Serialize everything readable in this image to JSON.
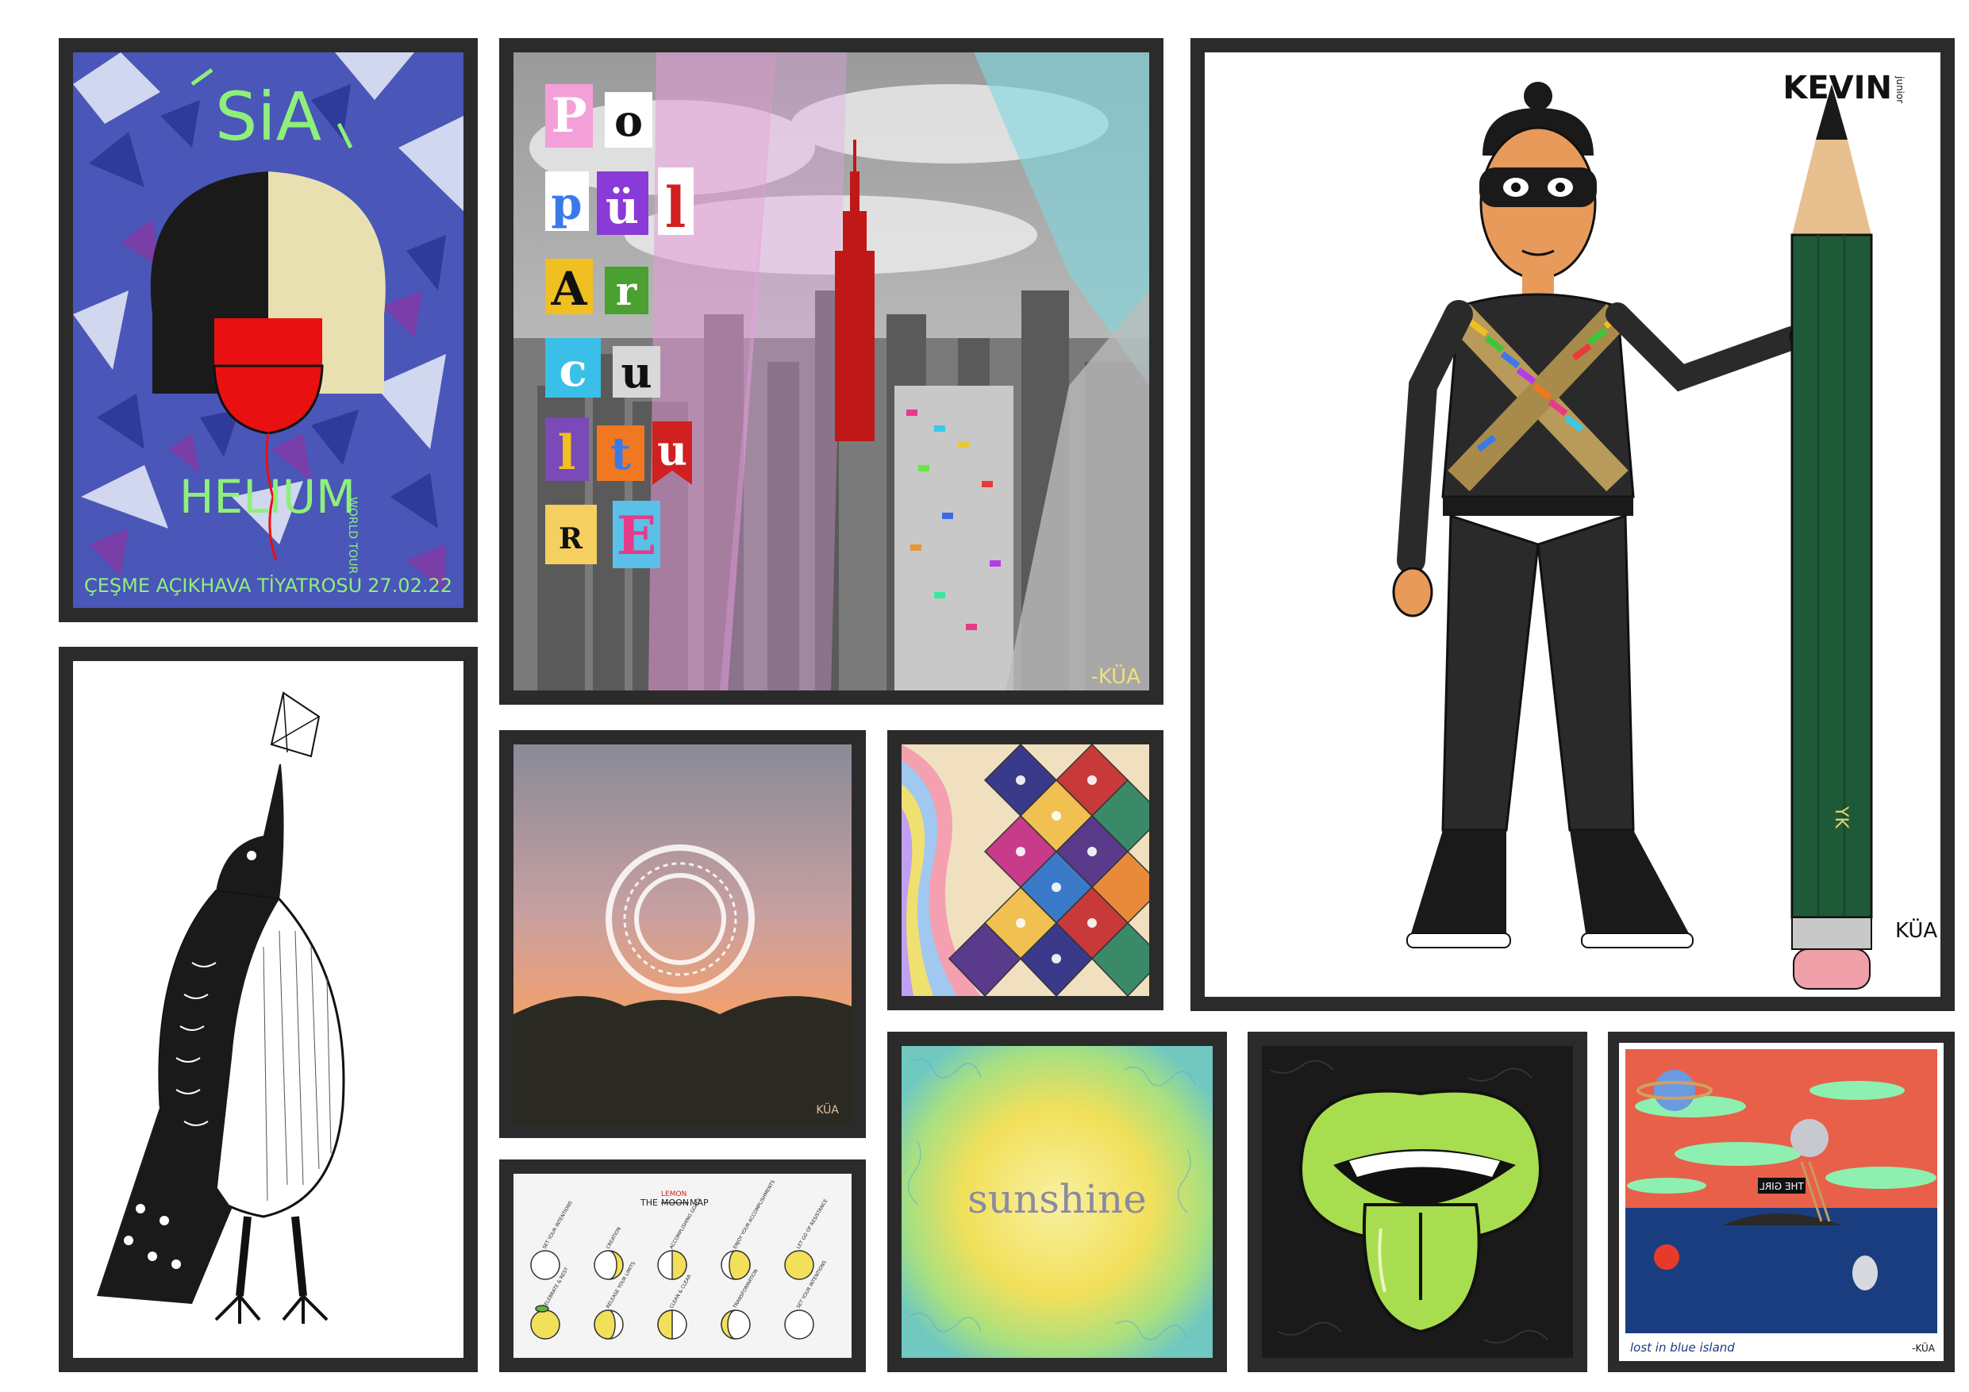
{
  "artworks": {
    "sia": {
      "title": "SiA",
      "headline": "HELIUM",
      "tour": "WORLD TOUR",
      "venue": "ÇEŞME AÇIKHAVA TİYATROSU",
      "date": "27.02.22"
    },
    "pop": {
      "letters": [
        "P",
        "o",
        "p",
        "ü",
        "l",
        "A",
        "r",
        "c",
        "u",
        "l",
        "t",
        "u",
        "R",
        "E"
      ],
      "signature": "-KÜA"
    },
    "kevin": {
      "brand": "KEVIN",
      "brand_sub": "junior",
      "pencil_mark": "YK",
      "signature": "KÜA"
    },
    "sunset": {
      "signature": "KÜA"
    },
    "moon_map": {
      "title_the": "THE",
      "title_lemon": "LEMON",
      "title_moon": "MOON",
      "title_map": "MAP",
      "phases": [
        "SET YOUR INTENTIONS",
        "CREATION",
        "ACCOMPLISHING GOALS",
        "ENJOY YOUR ACCOMPLISHMENTS",
        "LET GO OF RESISTANCE",
        "CELEBRATE & REST",
        "RELEASE YOUR LIMITS",
        "CLEAN & CLEAR",
        "TRANSFORMATION",
        "SET YOUR INTENTIONS"
      ]
    },
    "sunshine": {
      "word": "sunshine"
    },
    "island": {
      "caption": "lost in blue island",
      "sign": "THE GIRL",
      "signature": "-KÜA"
    }
  },
  "colors": {
    "frame": "#2b2b2b",
    "sia_blue": "#4a56b8",
    "sia_text": "#8ef07a",
    "balloon": "#e81010",
    "pop_pink": "#e89ad8",
    "pop_cyan": "#7fd8e0",
    "empire": "#c01818",
    "sunset_orange": "#f0a070",
    "lemon": "#f2e05a",
    "tongue_green": "#a8dd50",
    "island_red": "#e8604a",
    "island_sea": "#1a3d80"
  }
}
